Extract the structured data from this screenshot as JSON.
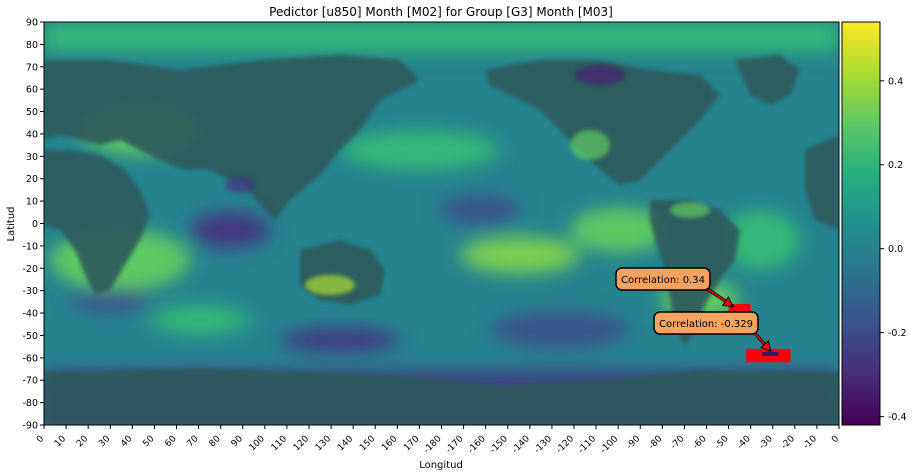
{
  "chart_data": {
    "type": "heatmap",
    "title": "Pedictor [u850] Month [M02] for Group [G3] Month [M03]",
    "xlabel": "Longitud",
    "ylabel": "Latitud",
    "x_ticks": [
      "0",
      "10",
      "20",
      "30",
      "40",
      "50",
      "60",
      "70",
      "80",
      "90",
      "100",
      "110",
      "120",
      "130",
      "140",
      "150",
      "160",
      "170",
      "-180",
      "-170",
      "-160",
      "-150",
      "-140",
      "-130",
      "-120",
      "-110",
      "-100",
      "-90",
      "-80",
      "-70",
      "-60",
      "-50",
      "-40",
      "-30",
      "-20",
      "-10",
      "0"
    ],
    "y_ticks": [
      "90",
      "80",
      "70",
      "60",
      "50",
      "40",
      "30",
      "20",
      "10",
      "0",
      "-10",
      "-20",
      "-30",
      "-40",
      "-50",
      "-60",
      "-70",
      "-80",
      "-90"
    ],
    "colorbar": {
      "colormap": "viridis",
      "range": [
        -0.42,
        0.54
      ],
      "ticks": [
        "0.4",
        "0.2",
        "0.0",
        "-0.2",
        "-0.4"
      ],
      "tick_values": [
        0.4,
        0.2,
        0.0,
        -0.2,
        -0.4
      ]
    },
    "colors": {
      "low": "#440154",
      "mid": "#21918c",
      "high": "#fde725",
      "highlight_box": "#ff0000",
      "annotation_fill": "#f4a460"
    },
    "annotations": [
      {
        "text": "Correlation: 0.34",
        "value": 0.34,
        "target_lon": -48,
        "target_lat": -37
      },
      {
        "text": "Correlation: -0.329",
        "value": -0.329,
        "target_lon": -31,
        "target_lat": -57
      }
    ],
    "highlight_regions": [
      {
        "lon": [
          -50,
          -40
        ],
        "lat": [
          -36,
          -43
        ]
      },
      {
        "lon": [
          -42,
          -22
        ],
        "lat": [
          -56,
          -62
        ]
      }
    ]
  }
}
